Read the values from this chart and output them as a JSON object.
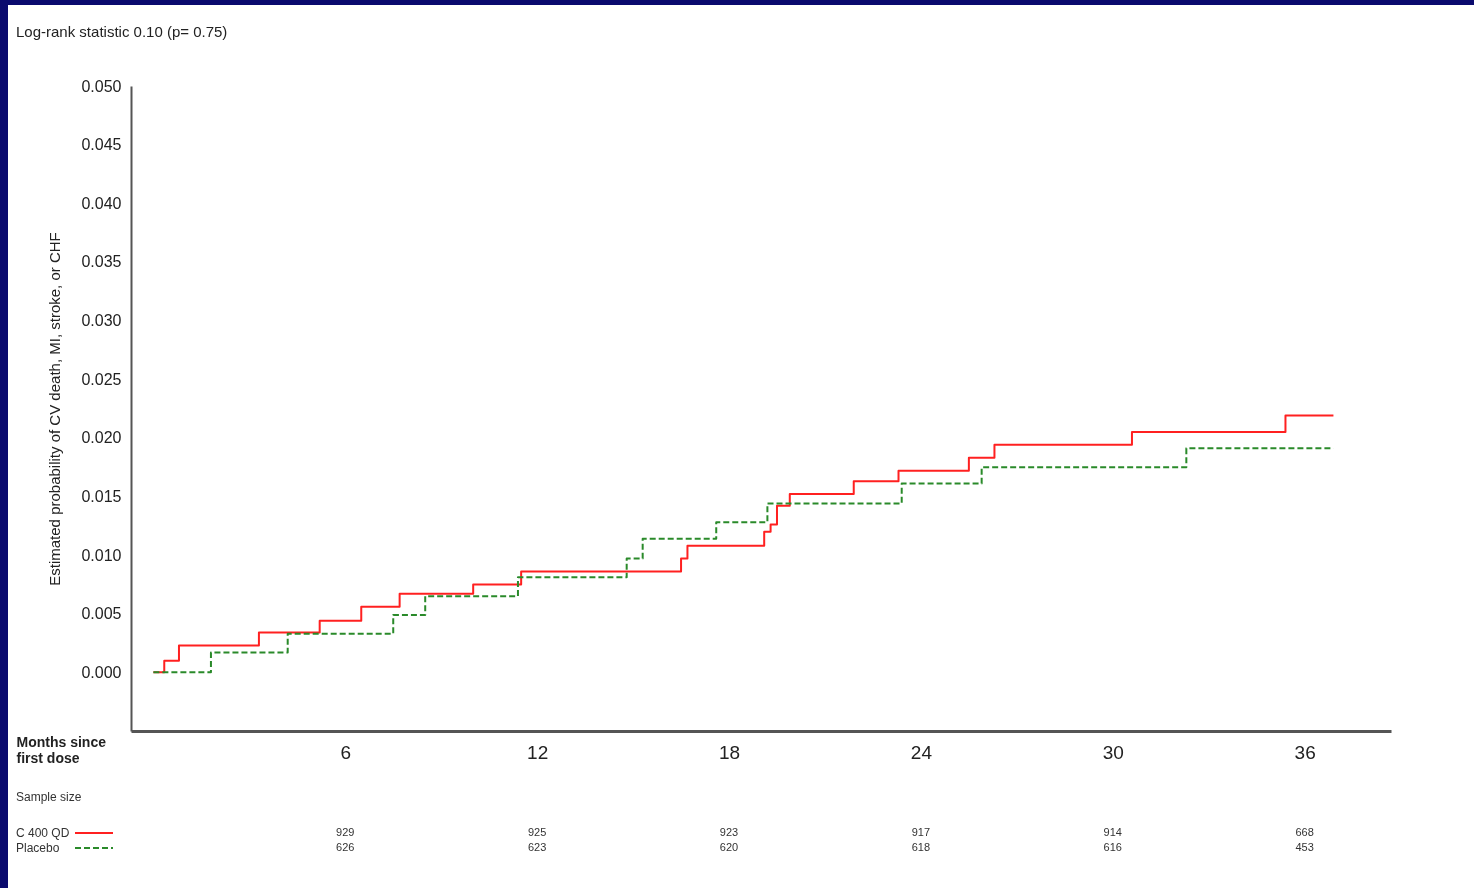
{
  "chart_data": {
    "type": "step",
    "title": "Log-rank statistic 0.10 (p= 0.75)",
    "xlabel": "Months since first dose",
    "ylabel": "Estimated probability of CV death, MI, stroke, or CHF",
    "xlim": [
      -0.7,
      38.7
    ],
    "xticks": [
      6,
      12,
      18,
      24,
      30,
      36
    ],
    "ylim": [
      -0.005,
      0.05
    ],
    "yticks": [
      {
        "value": 0,
        "label": "0.000"
      },
      {
        "value": 0.005,
        "label": "0.005"
      },
      {
        "value": 0.01,
        "label": "0.010"
      },
      {
        "value": 0.015,
        "label": "0.015"
      },
      {
        "value": 0.02,
        "label": "0.020"
      },
      {
        "value": 0.025,
        "label": "0.025"
      },
      {
        "value": 0.03,
        "label": "0.030"
      },
      {
        "value": 0.035,
        "label": "0.035"
      },
      {
        "value": 0.04,
        "label": "0.040"
      },
      {
        "value": 0.045,
        "label": "0.045"
      },
      {
        "value": 0.05,
        "label": "0.050"
      }
    ],
    "grid": false,
    "legend": "bottom left",
    "marker": "none",
    "series": [
      {
        "name": "C 400 QD",
        "color": "#ff2020",
        "line_style": "solid",
        "x": [
          0,
          0.34,
          0.8,
          3.3,
          5.2,
          6.5,
          7.7,
          10.0,
          11.5,
          16.5,
          16.7,
          19.1,
          19.3,
          19.5,
          19.9,
          21.9,
          23.3,
          25.5,
          26.3,
          30.6,
          35.4,
          36.9
        ],
        "values": [
          0,
          0.001,
          0.0023,
          0.0034,
          0.0044,
          0.0056,
          0.0067,
          0.0075,
          0.0086,
          0.0097,
          0.0108,
          0.012,
          0.0126,
          0.0142,
          0.0152,
          0.0163,
          0.0172,
          0.0183,
          0.0194,
          0.0205,
          0.0219,
          0.0219
        ]
      },
      {
        "name": "Placebo",
        "color": "#2a8a2a",
        "line_style": "dashed",
        "x": [
          0,
          1.8,
          4.2,
          7.5,
          8.5,
          11.4,
          14.8,
          15.3,
          17.6,
          19.2,
          23.4,
          25.9,
          32.3,
          36.9
        ],
        "values": [
          0,
          0.0017,
          0.0033,
          0.0049,
          0.0065,
          0.0081,
          0.0097,
          0.0114,
          0.0128,
          0.0144,
          0.0161,
          0.0175,
          0.0191,
          0.0191
        ]
      }
    ],
    "annotations": [
      "Sample size",
      "929",
      "925",
      "923",
      "917",
      "914",
      "668",
      "626",
      "623",
      "620",
      "618",
      "616",
      "453"
    ]
  }
}
